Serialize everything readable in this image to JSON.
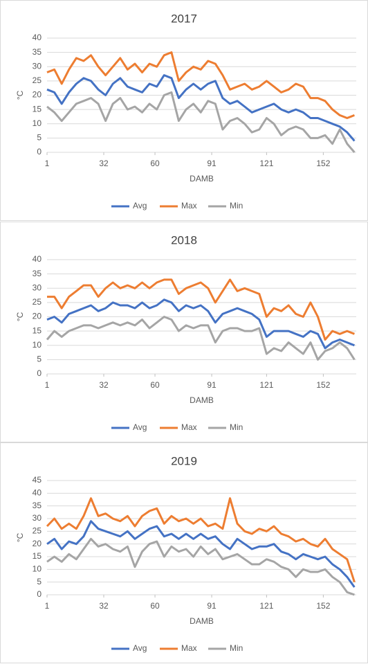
{
  "chart_data": [
    {
      "type": "line",
      "title": "2017",
      "x_label": "DAMB",
      "y_label": "°C",
      "grid": true,
      "legend": "bottom",
      "x": [
        1,
        5,
        9,
        13,
        17,
        21,
        25,
        29,
        33,
        37,
        41,
        45,
        49,
        53,
        57,
        61,
        65,
        69,
        73,
        77,
        81,
        85,
        89,
        93,
        97,
        101,
        105,
        109,
        113,
        117,
        121,
        125,
        129,
        133,
        137,
        141,
        145,
        149,
        153,
        157,
        161,
        165,
        169
      ],
      "xlim": [
        1,
        170
      ],
      "xticks": [
        1,
        32,
        60,
        91,
        121,
        152
      ],
      "ylim": [
        0,
        40
      ],
      "yticks": [
        0,
        5,
        10,
        15,
        20,
        25,
        30,
        35,
        40
      ],
      "series": [
        {
          "name": "Avg",
          "color": "#4472c4",
          "values": [
            22,
            21,
            17,
            21,
            24,
            26,
            25,
            22,
            20,
            24,
            26,
            23,
            22,
            21,
            24,
            23,
            27,
            26,
            19,
            22,
            24,
            22,
            24,
            25,
            19,
            17,
            18,
            16,
            14,
            15,
            16,
            17,
            15,
            14,
            15,
            14,
            12,
            12,
            11,
            10,
            9,
            7,
            4
          ]
        },
        {
          "name": "Max",
          "color": "#ed7d31",
          "values": [
            28,
            29,
            24,
            29,
            33,
            32,
            34,
            30,
            27,
            30,
            33,
            29,
            31,
            28,
            31,
            30,
            34,
            35,
            25,
            28,
            30,
            29,
            32,
            31,
            27,
            22,
            23,
            24,
            22,
            23,
            25,
            23,
            21,
            22,
            24,
            23,
            19,
            19,
            18,
            15,
            13,
            12,
            13
          ]
        },
        {
          "name": "Min",
          "color": "#a5a5a5",
          "values": [
            16,
            14,
            11,
            14,
            17,
            18,
            19,
            17,
            11,
            17,
            19,
            15,
            16,
            14,
            17,
            15,
            20,
            21,
            11,
            15,
            17,
            14,
            18,
            17,
            8,
            11,
            12,
            10,
            7,
            8,
            12,
            10,
            6,
            8,
            9,
            8,
            5,
            5,
            6,
            3,
            8,
            3,
            0
          ]
        }
      ]
    },
    {
      "type": "line",
      "title": "2018",
      "x_label": "DAMB",
      "y_label": "°C",
      "grid": true,
      "legend": "bottom",
      "x": [
        1,
        5,
        9,
        13,
        17,
        21,
        25,
        29,
        33,
        37,
        41,
        45,
        49,
        53,
        57,
        61,
        65,
        69,
        73,
        77,
        81,
        85,
        89,
        93,
        97,
        101,
        105,
        109,
        113,
        117,
        121,
        125,
        129,
        133,
        137,
        141,
        145,
        149,
        153,
        157,
        161,
        165,
        169
      ],
      "xlim": [
        1,
        170
      ],
      "xticks": [
        1,
        32,
        60,
        91,
        121,
        152
      ],
      "ylim": [
        0,
        40
      ],
      "yticks": [
        0,
        5,
        10,
        15,
        20,
        25,
        30,
        35,
        40
      ],
      "series": [
        {
          "name": "Avg",
          "color": "#4472c4",
          "values": [
            19,
            20,
            18,
            21,
            22,
            23,
            24,
            22,
            23,
            25,
            24,
            24,
            23,
            25,
            23,
            24,
            26,
            25,
            22,
            24,
            23,
            24,
            22,
            18,
            21,
            22,
            23,
            22,
            21,
            19,
            13,
            15,
            15,
            15,
            14,
            13,
            15,
            14,
            9,
            11,
            12,
            11,
            10
          ]
        },
        {
          "name": "Max",
          "color": "#ed7d31",
          "values": [
            27,
            27,
            23,
            27,
            29,
            31,
            31,
            27,
            30,
            32,
            30,
            31,
            30,
            32,
            30,
            32,
            33,
            33,
            28,
            30,
            31,
            32,
            30,
            25,
            29,
            33,
            29,
            30,
            29,
            28,
            20,
            23,
            22,
            24,
            21,
            20,
            25,
            20,
            12,
            15,
            14,
            15,
            14
          ]
        },
        {
          "name": "Min",
          "color": "#a5a5a5",
          "values": [
            12,
            15,
            13,
            15,
            16,
            17,
            17,
            16,
            17,
            18,
            17,
            18,
            17,
            19,
            16,
            18,
            20,
            19,
            15,
            17,
            16,
            17,
            17,
            11,
            15,
            16,
            16,
            15,
            15,
            16,
            7,
            9,
            8,
            11,
            9,
            7,
            11,
            5,
            8,
            9,
            11,
            9,
            5
          ]
        }
      ]
    },
    {
      "type": "line",
      "title": "2019",
      "x_label": "DAMB",
      "y_label": "°C",
      "grid": true,
      "legend": "bottom",
      "x": [
        1,
        5,
        9,
        13,
        17,
        21,
        25,
        29,
        33,
        37,
        41,
        45,
        49,
        53,
        57,
        61,
        65,
        69,
        73,
        77,
        81,
        85,
        89,
        93,
        97,
        101,
        105,
        109,
        113,
        117,
        121,
        125,
        129,
        133,
        137,
        141,
        145,
        149,
        153,
        157,
        161,
        165,
        169
      ],
      "xlim": [
        1,
        170
      ],
      "xticks": [
        1,
        32,
        60,
        91,
        121,
        152
      ],
      "ylim": [
        0,
        45
      ],
      "yticks": [
        0,
        5,
        10,
        15,
        20,
        25,
        30,
        35,
        40,
        45
      ],
      "series": [
        {
          "name": "Avg",
          "color": "#4472c4",
          "values": [
            20,
            22,
            18,
            21,
            20,
            23,
            29,
            26,
            25,
            24,
            23,
            25,
            22,
            24,
            26,
            27,
            23,
            24,
            22,
            24,
            22,
            24,
            22,
            23,
            20,
            18,
            22,
            20,
            18,
            19,
            19,
            20,
            17,
            16,
            14,
            16,
            15,
            14,
            15,
            12,
            10,
            7,
            3
          ]
        },
        {
          "name": "Max",
          "color": "#ed7d31",
          "values": [
            27,
            30,
            26,
            28,
            26,
            31,
            38,
            31,
            32,
            30,
            29,
            31,
            27,
            31,
            33,
            34,
            28,
            31,
            29,
            30,
            28,
            30,
            27,
            28,
            26,
            38,
            28,
            25,
            24,
            26,
            25,
            27,
            24,
            23,
            21,
            22,
            20,
            19,
            22,
            18,
            16,
            14,
            5
          ]
        },
        {
          "name": "Min",
          "color": "#a5a5a5",
          "values": [
            13,
            15,
            13,
            16,
            14,
            18,
            22,
            19,
            20,
            18,
            17,
            19,
            11,
            17,
            20,
            21,
            15,
            19,
            17,
            18,
            15,
            19,
            16,
            18,
            14,
            15,
            16,
            14,
            12,
            12,
            14,
            13,
            11,
            10,
            7,
            10,
            9,
            9,
            10,
            7,
            5,
            1,
            0
          ]
        }
      ]
    }
  ]
}
